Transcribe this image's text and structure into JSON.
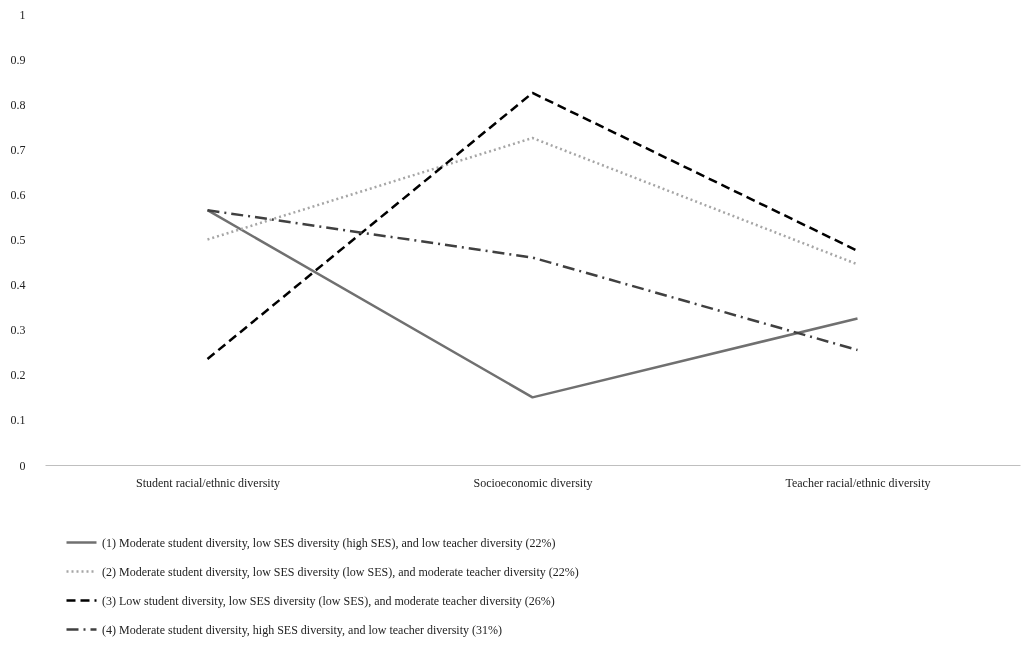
{
  "chart_data": {
    "type": "line",
    "categories": [
      "Student racial/ethnic diversity",
      "Socioeconomic diversity",
      "Teacher racial/ethnic diversity"
    ],
    "ylim": [
      0,
      1
    ],
    "yticks": [
      0,
      0.1,
      0.2,
      0.3,
      0.4,
      0.5,
      0.6,
      0.7,
      0.8,
      0.9,
      1
    ],
    "grid": false,
    "legend": "bottom",
    "marker": "none",
    "series": [
      {
        "name": "(1) Moderate student diversity, low SES diversity (high SES), and low teacher diversity (22%)",
        "color": "#707070",
        "line_style": "solid",
        "values": [
          0.565,
          0.15,
          0.325
        ]
      },
      {
        "name": "(2) Moderate student diversity, low SES diversity (low SES), and moderate teacher diversity (22%)",
        "color": "#a6a6a6",
        "line_style": "dotted",
        "values": [
          0.5,
          0.725,
          0.445
        ]
      },
      {
        "name": "(3) Low student diversity, low SES diversity (low SES), and moderate teacher diversity (26%)",
        "color": "#000000",
        "line_style": "dashed",
        "values": [
          0.235,
          0.825,
          0.475
        ]
      },
      {
        "name": "(4) Moderate student diversity, high SES diversity, and low teacher diversity (31%)",
        "color": "#404040",
        "line_style": "dashdot",
        "values": [
          0.565,
          0.46,
          0.255
        ]
      }
    ]
  }
}
